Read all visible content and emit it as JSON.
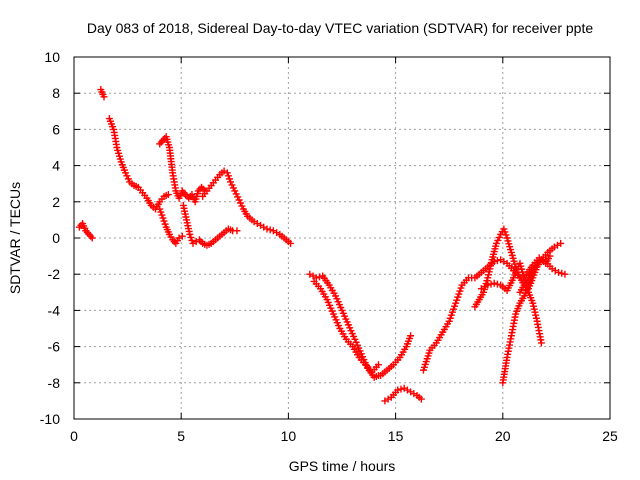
{
  "chart_data": {
    "type": "scatter",
    "title": "Day 083 of 2018, Sidereal Day-to-day VTEC variation (SDTVAR) for receiver ppte",
    "xlabel": "GPS time / hours",
    "ylabel": "SDTVAR / TECUs",
    "xlim": [
      0,
      25
    ],
    "ylim": [
      -10,
      10
    ],
    "xticks": [
      0,
      5,
      10,
      15,
      20,
      25
    ],
    "xtick_labels": [
      "0",
      "5",
      "10",
      "15",
      "20",
      "25"
    ],
    "yticks": [
      -10,
      -8,
      -6,
      -4,
      -2,
      0,
      2,
      4,
      6,
      8,
      10
    ],
    "ytick_labels": [
      "-10",
      "-8",
      "-6",
      "-4",
      "-2",
      "0",
      "2",
      "4",
      "6",
      "8",
      "10"
    ],
    "grid": true,
    "marker": "+",
    "color": "#ff0000",
    "series": [
      {
        "name": "s1",
        "x": [
          0.25,
          0.4,
          0.55,
          0.7,
          0.85
        ],
        "y": [
          0.6,
          0.8,
          0.4,
          0.2,
          0.0
        ]
      },
      {
        "name": "s2",
        "x": [
          1.25,
          1.4
        ],
        "y": [
          8.2,
          7.8
        ]
      },
      {
        "name": "s3",
        "x": [
          1.65,
          1.85,
          2.0,
          2.2,
          2.4,
          2.6,
          2.8,
          3.0,
          3.2,
          3.4,
          3.6,
          3.8,
          4.0,
          4.2,
          4.4
        ],
        "y": [
          6.6,
          6.0,
          5.0,
          4.2,
          3.6,
          3.1,
          2.9,
          2.8,
          2.5,
          2.2,
          1.8,
          1.6,
          2.0,
          2.3,
          2.4
        ]
      },
      {
        "name": "s4",
        "x": [
          4.0,
          4.15,
          4.3,
          4.45,
          4.6,
          4.75,
          4.9,
          5.05,
          5.2,
          5.35,
          5.5,
          5.65,
          5.8,
          5.95,
          6.1
        ],
        "y": [
          5.2,
          5.4,
          5.6,
          5.0,
          3.6,
          2.6,
          2.2,
          2.6,
          2.4,
          2.2,
          2.4,
          2.0,
          2.6,
          2.8,
          2.6
        ]
      },
      {
        "name": "s5",
        "x": [
          4.0,
          4.15,
          4.3,
          4.45,
          4.6,
          4.75,
          4.9,
          5.05
        ],
        "y": [
          1.6,
          1.1,
          0.6,
          0.2,
          -0.1,
          -0.3,
          0.0,
          0.1
        ]
      },
      {
        "name": "s6",
        "x": [
          5.1,
          5.25,
          5.4,
          5.55,
          5.7,
          5.85,
          6.0,
          6.2,
          6.4,
          6.6,
          6.8,
          7.0,
          7.2,
          7.4,
          7.6
        ],
        "y": [
          1.8,
          1.0,
          0.2,
          -0.3,
          -0.2,
          -0.1,
          -0.3,
          -0.4,
          -0.3,
          -0.1,
          0.1,
          0.3,
          0.5,
          0.4,
          0.4
        ]
      },
      {
        "name": "s7",
        "x": [
          6.0,
          6.2,
          6.4,
          6.6,
          6.8,
          7.0,
          7.15,
          7.3,
          7.5,
          7.7,
          7.9,
          8.1,
          8.4,
          8.7,
          9.0,
          9.3,
          9.6,
          9.9,
          10.1
        ],
        "y": [
          2.3,
          2.6,
          2.9,
          3.2,
          3.5,
          3.7,
          3.6,
          3.1,
          2.6,
          2.1,
          1.6,
          1.2,
          0.9,
          0.7,
          0.5,
          0.4,
          0.2,
          -0.1,
          -0.3
        ]
      },
      {
        "name": "s8",
        "x": [
          11.0,
          11.3,
          11.6,
          11.9,
          12.2,
          12.5,
          12.8,
          13.1,
          13.4,
          13.7,
          14.0,
          14.2
        ],
        "y": [
          -2.0,
          -2.2,
          -2.1,
          -2.6,
          -3.2,
          -4.0,
          -4.8,
          -5.6,
          -6.4,
          -7.2,
          -7.7,
          -7.6
        ]
      },
      {
        "name": "s9",
        "x": [
          11.2,
          11.5,
          11.8,
          12.1,
          12.4,
          12.7,
          13.0,
          13.3,
          13.6,
          13.9,
          14.2
        ],
        "y": [
          -2.4,
          -2.8,
          -3.4,
          -4.2,
          -5.0,
          -5.6,
          -6.0,
          -6.6,
          -7.0,
          -7.4,
          -7.0
        ]
      },
      {
        "name": "s10",
        "x": [
          14.3,
          14.6,
          14.9,
          15.2,
          15.5,
          15.7
        ],
        "y": [
          -7.6,
          -7.3,
          -7.0,
          -6.6,
          -6.0,
          -5.4
        ]
      },
      {
        "name": "s11",
        "x": [
          14.5,
          14.8,
          15.1,
          15.4,
          15.7,
          16.0,
          16.2
        ],
        "y": [
          -9.0,
          -8.8,
          -8.4,
          -8.3,
          -8.5,
          -8.7,
          -8.9
        ]
      },
      {
        "name": "s12",
        "x": [
          16.3,
          16.6,
          16.9,
          17.2,
          17.5,
          17.8,
          18.1,
          18.4,
          18.7,
          19.0,
          19.3,
          19.6,
          19.9,
          20.2,
          20.5,
          20.8,
          21.1,
          21.4,
          21.7,
          22.0,
          22.3,
          22.6,
          22.9
        ],
        "y": [
          -7.3,
          -6.2,
          -5.8,
          -5.2,
          -4.6,
          -3.6,
          -2.6,
          -2.2,
          -2.2,
          -1.9,
          -1.6,
          -1.3,
          -1.2,
          -1.4,
          -1.8,
          -2.2,
          -2.0,
          -1.5,
          -1.1,
          -1.3,
          -1.7,
          -1.9,
          -2.0
        ]
      },
      {
        "name": "s13",
        "x": [
          18.7,
          18.9,
          19.1,
          19.3,
          19.5,
          19.7,
          19.9,
          20.05,
          20.2,
          20.4,
          20.6,
          20.8,
          21.0,
          21.2,
          21.4,
          21.6,
          21.8
        ],
        "y": [
          -3.8,
          -3.4,
          -3.0,
          -2.2,
          -1.2,
          -0.3,
          0.2,
          0.5,
          0.0,
          -0.8,
          -1.6,
          -2.2,
          -2.6,
          -3.0,
          -3.6,
          -4.6,
          -5.8
        ]
      },
      {
        "name": "s14",
        "x": [
          19.0,
          19.3,
          19.6,
          19.9,
          20.2,
          20.5,
          20.8,
          21.0,
          21.2,
          21.4,
          21.6,
          21.8,
          22.1,
          22.4,
          22.7
        ],
        "y": [
          -2.8,
          -2.6,
          -2.5,
          -2.6,
          -2.9,
          -2.2,
          -1.4,
          -2.2,
          -2.8,
          -2.2,
          -1.6,
          -1.2,
          -0.8,
          -0.5,
          -0.3
        ]
      },
      {
        "name": "s15",
        "x": [
          20.0,
          20.2,
          20.4,
          20.6,
          20.8,
          21.0,
          21.2,
          21.4
        ],
        "y": [
          -8.0,
          -6.6,
          -5.4,
          -4.2,
          -3.6,
          -3.2,
          -2.6,
          -1.8
        ]
      },
      {
        "name": "s16",
        "x": [
          20.8,
          21.0,
          21.2,
          21.4,
          21.6,
          21.8,
          22.0,
          22.2
        ],
        "y": [
          -3.0,
          -2.6,
          -2.2,
          -1.8,
          -1.4,
          -1.2,
          -1.4,
          -1.0
        ]
      }
    ]
  }
}
